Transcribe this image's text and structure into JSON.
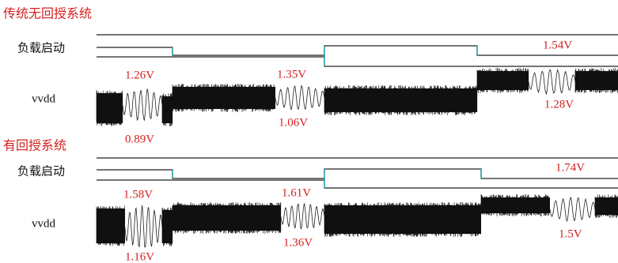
{
  "panels": [
    {
      "title": "传统无回授系统",
      "load_label": "负载启动",
      "signal_label": "vvdd",
      "annotations": [
        "1.26V",
        "0.89V",
        "1.35V",
        "1.06V",
        "1.54V",
        "1.28V"
      ]
    },
    {
      "title": "有回授系统",
      "load_label": "负载启动",
      "signal_label": "vvdd",
      "annotations": [
        "1.58V",
        "1.16V",
        "1.61V",
        "1.36V",
        "1.74V",
        "1.5V"
      ]
    }
  ]
}
